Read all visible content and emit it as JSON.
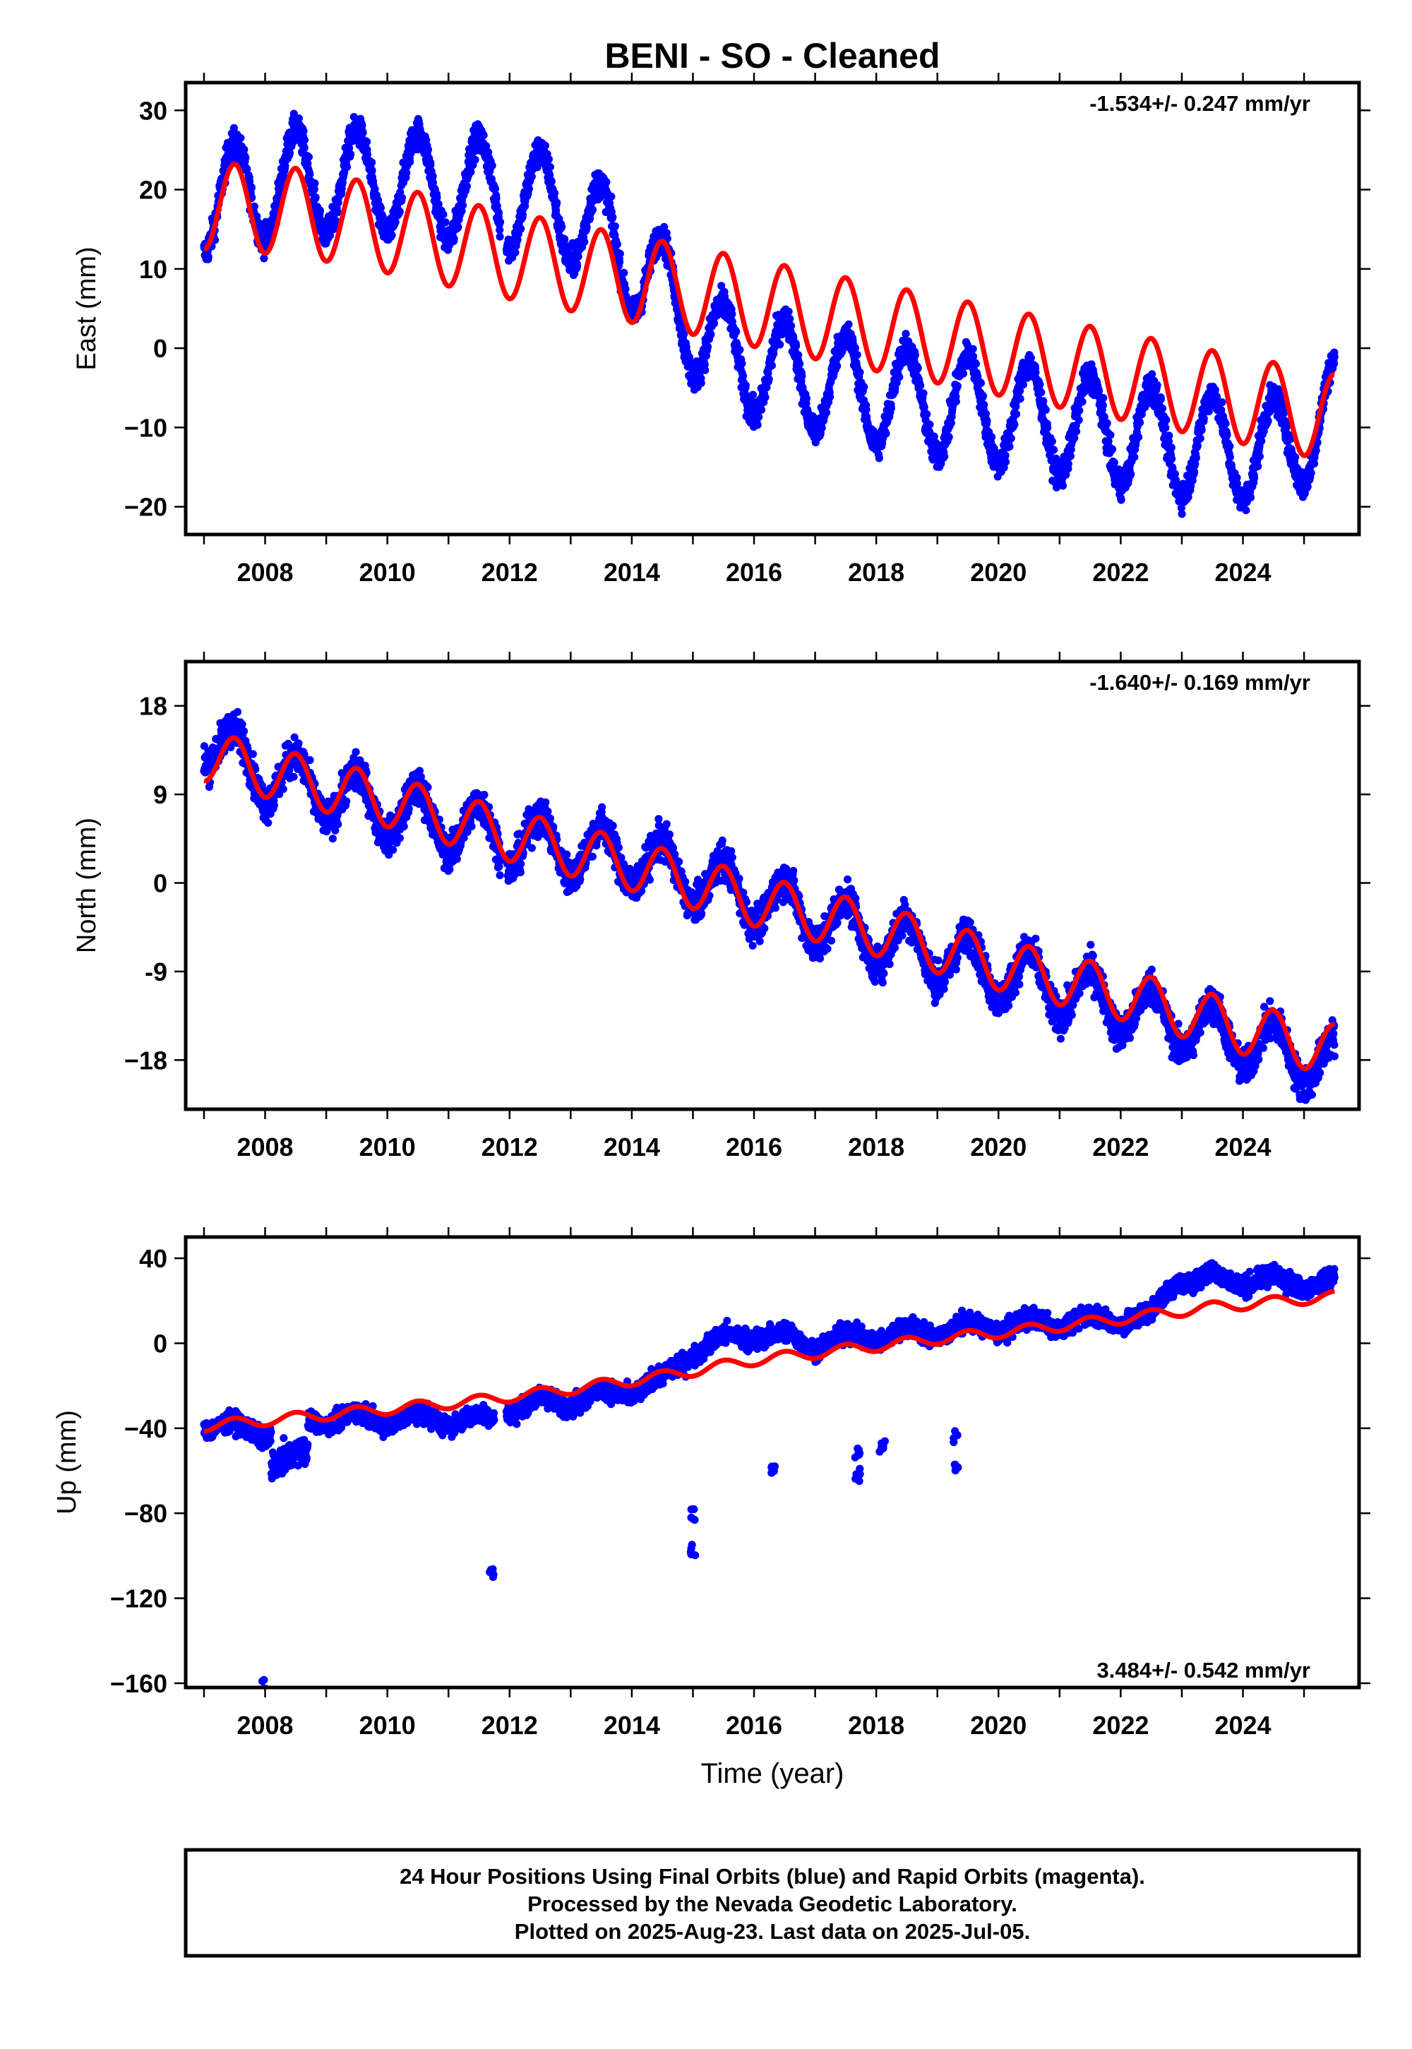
{
  "chart_data": {
    "type": "scatter",
    "title": "BENI  - SO - Cleaned",
    "xlabel": "Time (year)",
    "x_ticks": [
      "2008",
      "2010",
      "2012",
      "2014",
      "2016",
      "2018",
      "2020",
      "2022",
      "2024"
    ],
    "xlim": [
      2006.7,
      2025.9
    ],
    "series_colors": {
      "observations": "#0000ff",
      "model": "#ff0000"
    },
    "panels": [
      {
        "component": "east",
        "ylabel": "East (mm)",
        "ylim": [
          -23.5,
          33.5
        ],
        "y_ticks": [
          30,
          20,
          10,
          0,
          -10,
          -20
        ],
        "y_tick_labels": [
          "30",
          "20",
          "10",
          "0",
          "−10",
          "−20"
        ],
        "rate_label": "-1.534+/- 0.247 mm/yr",
        "rate_position": "top-right",
        "observed_trend": {
          "x": [
            2007.0,
            2008.5,
            2010.0,
            2011.5,
            2013.0,
            2014.3,
            2015.5,
            2017.0,
            2018.5,
            2020.0,
            2021.5,
            2023.0,
            2024.5,
            2025.5
          ],
          "y": [
            18.5,
            21.0,
            21.0,
            20.0,
            17.5,
            9.0,
            -1.0,
            -4.0,
            -6.5,
            -8.0,
            -10.0,
            -12.0,
            -13.0,
            -8.0
          ]
        },
        "seasonal_amplitude": 6.5,
        "model_line": {
          "x": [
            2007.0,
            2008.5,
            2010.0,
            2011.5,
            2013.0,
            2014.5,
            2016.0,
            2017.5,
            2019.0,
            2020.5,
            2022.0,
            2023.5,
            2025.5
          ],
          "y": [
            18.0,
            17.2,
            15.0,
            12.5,
            10.2,
            8.0,
            5.7,
            3.4,
            1.1,
            -1.2,
            -3.5,
            -5.8,
            -8.8
          ]
        },
        "model_amplitude": 5.5
      },
      {
        "component": "north",
        "ylabel": "North (mm)",
        "ylim": [
          -23,
          22.5
        ],
        "y_ticks": [
          18,
          9,
          0,
          -9,
          -18
        ],
        "y_tick_labels": [
          "18",
          "9",
          "0",
          "-9",
          "−18"
        ],
        "rate_label": "-1.640+/- 0.169 mm/yr",
        "rate_position": "top-right",
        "observed_trend": {
          "x": [
            2007.0,
            2008.0,
            2010.0,
            2012.0,
            2014.0,
            2016.0,
            2018.0,
            2020.0,
            2022.0,
            2024.0,
            2025.5
          ],
          "y": [
            15.0,
            11.0,
            7.5,
            4.5,
            2.5,
            -1.5,
            -5.5,
            -9.0,
            -12.5,
            -16.0,
            -18.5
          ]
        },
        "seasonal_amplitude": 2.8,
        "model_line": {
          "x": [
            2007.0,
            2008.0,
            2010.0,
            2012.0,
            2014.0,
            2016.0,
            2018.0,
            2020.0,
            2022.0,
            2024.0,
            2025.5
          ],
          "y": [
            13.0,
            11.3,
            8.3,
            4.8,
            1.8,
            -1.8,
            -4.8,
            -8.3,
            -11.3,
            -14.8,
            -17.0
          ]
        },
        "model_amplitude": 2.6
      },
      {
        "component": "up",
        "ylabel": "Up (mm)",
        "ylim": [
          -162,
          50
        ],
        "y_ticks": [
          40,
          0,
          -40,
          -80,
          -120,
          -160
        ],
        "y_tick_labels": [
          "40",
          "0",
          "−40",
          "−80",
          "−120",
          "−160"
        ],
        "rate_label": "3.484+/- 0.542 mm/yr",
        "rate_position": "bottom-right",
        "observed_trend": {
          "x": [
            2007.0,
            2008.0,
            2009.0,
            2011.7,
            2012.0,
            2013.5,
            2014.5,
            2015.0,
            2016.0,
            2017.0,
            2018.5,
            2019.5,
            2021.0,
            2022.5,
            2022.9,
            2024.0,
            2025.5
          ],
          "y": [
            -38.0,
            -42.0,
            -35.0,
            -36.0,
            -30.0,
            -25.0,
            -18.0,
            -3.0,
            5.0,
            0.0,
            5.0,
            7.0,
            10.0,
            12.0,
            30.0,
            30.0,
            28.0
          ]
        },
        "seasonal_amplitude": 3.0,
        "model_line": {
          "x": [
            2007.0,
            2008.5,
            2010.0,
            2011.5,
            2013.0,
            2014.5,
            2016.0,
            2017.5,
            2019.0,
            2020.5,
            2022.0,
            2023.5,
            2025.5
          ],
          "y": [
            -39.0,
            -35.0,
            -31.0,
            -27.0,
            -21.5,
            -15.5,
            -8.0,
            -3.0,
            2.0,
            6.5,
            11.5,
            17.0,
            22.0
          ]
        },
        "model_amplitude": 2.5,
        "outliers": [
          [
            2008.0,
            -160
          ],
          [
            2011.7,
            -109
          ],
          [
            2015.0,
            -80
          ],
          [
            2015.0,
            -97
          ],
          [
            2016.3,
            -59
          ],
          [
            2017.7,
            -52
          ],
          [
            2017.7,
            -62
          ],
          [
            2018.1,
            -48
          ],
          [
            2019.3,
            -44
          ],
          [
            2019.3,
            -57
          ]
        ]
      }
    ]
  },
  "footer": {
    "line1": "24 Hour Positions Using Final Orbits (blue) and Rapid Orbits (magenta).",
    "line2": "Processed by the Nevada Geodetic Laboratory.",
    "line3": "Plotted on 2025-Aug-23. Last data on 2025-Jul-05."
  }
}
